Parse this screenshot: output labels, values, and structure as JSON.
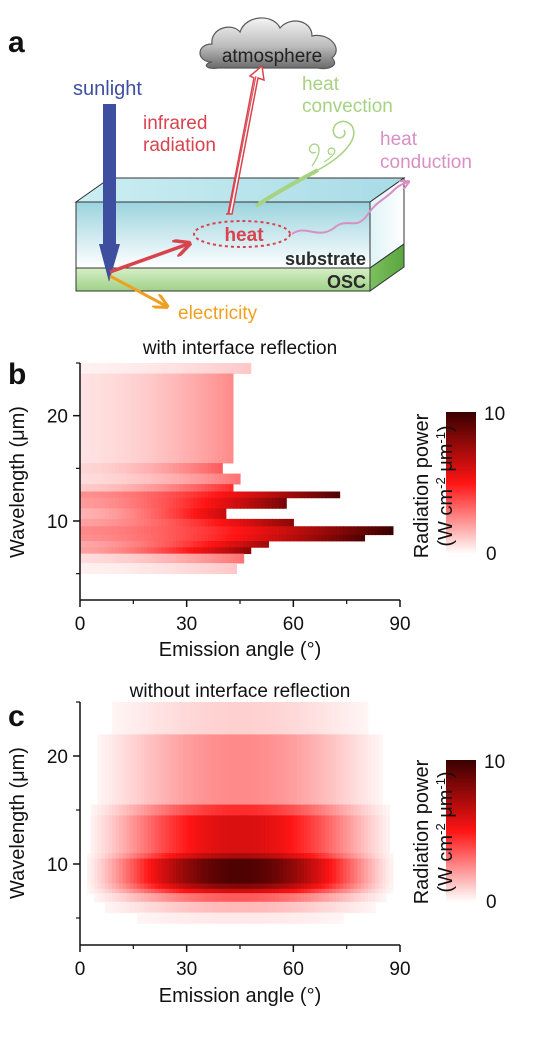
{
  "panels": {
    "a": {
      "letter": "a",
      "labels": {
        "atmosphere": "atmosphere",
        "sunlight": "sunlight",
        "infrared_1": "infrared",
        "infrared_2": "radiation",
        "convection_1": "heat",
        "convection_2": "convection",
        "conduction_1": "heat",
        "conduction_2": "conduction",
        "heat": "heat",
        "substrate": "substrate",
        "osc": "OSC",
        "electricity": "electricity"
      },
      "colors": {
        "sunlight": "#3f4fa0",
        "infrared": "#d8434e",
        "convection": "#a6d281",
        "conduction": "#d98fc4",
        "electricity": "#f0a020",
        "substrate_top": "#bfe6ec",
        "osc": "#8fc877"
      }
    },
    "b": {
      "letter": "b"
    },
    "c": {
      "letter": "c"
    }
  },
  "chart_data": [
    {
      "type": "heatmap",
      "title": "with interface reflection",
      "xlabel": "Emission angle (°)",
      "ylabel": "Wavelength (μm)",
      "xlim": [
        0,
        90
      ],
      "ylim": [
        2.5,
        25
      ],
      "x_ticks": [
        0,
        30,
        60,
        90
      ],
      "y_ticks": [
        10,
        20
      ],
      "colorbar": {
        "label_main": "Radiation power",
        "label_unit": "(W cm",
        "unit_sup1": "-2",
        "unit_mid": " μm",
        "unit_sup2": "-1",
        "unit_end": ")",
        "min": 0,
        "max": 10,
        "tick_labels": [
          "0",
          "10"
        ],
        "colors": [
          "#ffffff",
          "#ff0000",
          "#3a0000"
        ]
      },
      "bands": [
        {
          "lambda": [
            24,
            25
          ],
          "edge": 48,
          "level": 0.12
        },
        {
          "lambda": [
            15.5,
            24
          ],
          "edge": 43,
          "level": 0.25
        },
        {
          "lambda": [
            14.5,
            15.5
          ],
          "edge": 40,
          "level": 0.35
        },
        {
          "lambda": [
            13.5,
            14.5
          ],
          "edge": 45,
          "level": 0.3
        },
        {
          "lambda": [
            12.8,
            13.5
          ],
          "edge": 43,
          "level": 0.45
        },
        {
          "lambda": [
            12.2,
            12.8
          ],
          "edge": 73,
          "level": 0.95
        },
        {
          "lambda": [
            11.2,
            12.2
          ],
          "edge": 58,
          "level": 0.85
        },
        {
          "lambda": [
            10.2,
            11.2
          ],
          "edge": 41,
          "level": 0.65
        },
        {
          "lambda": [
            9.5,
            10.2
          ],
          "edge": 60,
          "level": 0.8
        },
        {
          "lambda": [
            8.7,
            9.5
          ],
          "edge": 88,
          "level": 1.0
        },
        {
          "lambda": [
            8.1,
            8.7
          ],
          "edge": 80,
          "level": 0.95
        },
        {
          "lambda": [
            7.5,
            8.1
          ],
          "edge": 53,
          "level": 0.75
        },
        {
          "lambda": [
            6.9,
            7.5
          ],
          "edge": 48,
          "level": 0.8
        },
        {
          "lambda": [
            6.0,
            6.9
          ],
          "edge": 46,
          "level": 0.3
        },
        {
          "lambda": [
            5.0,
            6.0
          ],
          "edge": 44,
          "level": 0.12
        }
      ]
    },
    {
      "type": "heatmap",
      "title": "without interface reflection",
      "xlabel": "Emission angle (°)",
      "ylabel": "Wavelength (μm)",
      "xlim": [
        0,
        90
      ],
      "ylim": [
        2.5,
        25
      ],
      "x_ticks": [
        0,
        30,
        60,
        90
      ],
      "y_ticks": [
        10,
        20
      ],
      "colorbar": {
        "label_main": "Radiation power",
        "label_unit": "(W cm",
        "unit_sup1": "-2",
        "unit_mid": " μm",
        "unit_sup2": "-1",
        "unit_end": ")",
        "min": 0,
        "max": 10,
        "tick_labels": [
          "0",
          "10"
        ],
        "colors": [
          "#ffffff",
          "#ff0000",
          "#3a0000"
        ]
      },
      "bands": [
        {
          "lambda": [
            22,
            25
          ],
          "edge": 88,
          "level": 0.1
        },
        {
          "lambda": [
            15.5,
            22
          ],
          "edge": 88,
          "level": 0.25
        },
        {
          "lambda": [
            14.5,
            15.5
          ],
          "edge": 88,
          "level": 0.45
        },
        {
          "lambda": [
            11,
            14.5
          ],
          "edge": 88,
          "level": 0.6
        },
        {
          "lambda": [
            10.5,
            11
          ],
          "edge": 88,
          "level": 0.72
        },
        {
          "lambda": [
            8.2,
            10.5
          ],
          "edge": 88,
          "level": 0.95
        },
        {
          "lambda": [
            7.7,
            8.2
          ],
          "edge": 88,
          "level": 0.82
        },
        {
          "lambda": [
            7.3,
            7.7
          ],
          "edge": 88,
          "level": 0.62
        },
        {
          "lambda": [
            6.5,
            7.3
          ],
          "edge": 88,
          "level": 0.35
        },
        {
          "lambda": [
            5.5,
            6.5
          ],
          "edge": 88,
          "level": 0.15
        },
        {
          "lambda": [
            4.5,
            5.5
          ],
          "edge": 88,
          "level": 0.05
        }
      ]
    }
  ]
}
